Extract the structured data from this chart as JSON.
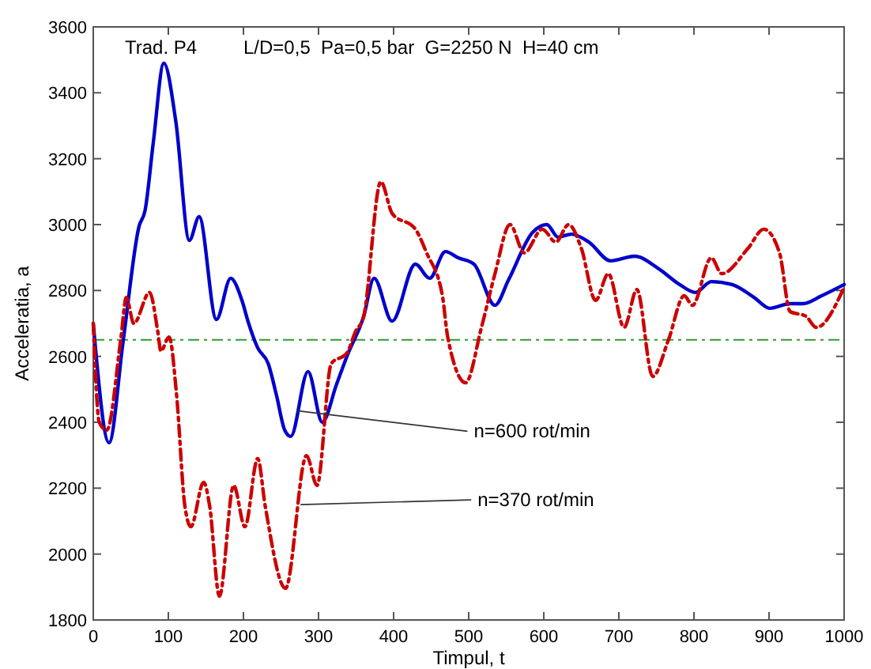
{
  "chart_data": {
    "type": "line",
    "title": "Trad. P4",
    "subtitle": "L/D=0,5  Pa=0,5 bar  G=2250 N  H=40 cm",
    "xlabel": "Timpul, t",
    "ylabel": "Acceleratia, a",
    "xlim": [
      0,
      1000
    ],
    "xticks": [
      0,
      100,
      200,
      300,
      400,
      500,
      600,
      700,
      800,
      900,
      1000
    ],
    "ylim": [
      1800,
      3600
    ],
    "yticks": [
      1800,
      2000,
      2200,
      2400,
      2600,
      2800,
      3000,
      3200,
      3400,
      3600
    ],
    "grid": false,
    "ref_lines": [
      {
        "axis": "y",
        "value": 2650,
        "color": "#339933",
        "line_style": "dashed"
      }
    ],
    "annotations": [
      {
        "text": "n=600 rot/min",
        "x": 271,
        "y": 2435
      },
      {
        "text": "n=370 rot/min",
        "x": 276,
        "y": 2150
      }
    ],
    "series": [
      {
        "color": "#0000cc",
        "line_style": "solid",
        "x": [
          0,
          21,
          40,
          61,
          69,
          80,
          94,
          110,
          128,
          141,
          164,
          183,
          198,
          206,
          219,
          233,
          244,
          255,
          263,
          286,
          305,
          324,
          338,
          360,
          374,
          398,
          429,
          448,
          469,
          486,
          507,
          535,
          553,
          585,
          604,
          619,
          637,
          660,
          689,
          721,
          753,
          781,
          802,
          823,
          851,
          880,
          901,
          928,
          945,
          970,
          1000
        ],
        "values": [
          2700,
          2338,
          2650,
          2995,
          3043,
          3250,
          3490,
          3312,
          2952,
          3024,
          2712,
          2837,
          2770,
          2707,
          2626,
          2578,
          2482,
          2376,
          2357,
          2554,
          2400,
          2515,
          2601,
          2720,
          2837,
          2707,
          2880,
          2837,
          2918,
          2899,
          2880,
          2755,
          2832,
          2976,
          3000,
          2962,
          2971,
          2947,
          2890,
          2904,
          2866,
          2818,
          2794,
          2827,
          2818,
          2779,
          2746,
          2760,
          2760,
          2784,
          2818
        ]
      },
      {
        "color": "#cc0000",
        "line_style": "dashed",
        "x": [
          0,
          8,
          18,
          37,
          44,
          54,
          75,
          86,
          90,
          101,
          111,
          122,
          130,
          147,
          155,
          168,
          187,
          202,
          219,
          229,
          256,
          284,
          298,
          317,
          338,
          349,
          360,
          383,
          398,
          429,
          444,
          465,
          472,
          496,
          517,
          535,
          555,
          574,
          598,
          616,
          633,
          650,
          669,
          686,
          707,
          724,
          745,
          766,
          787,
          798,
          823,
          837,
          872,
          893,
          914,
          928,
          949,
          963,
          1000
        ],
        "values": [
          2700,
          2400,
          2376,
          2659,
          2779,
          2700,
          2794,
          2674,
          2616,
          2659,
          2482,
          2146,
          2083,
          2218,
          2146,
          1872,
          2208,
          2083,
          2290,
          2146,
          1896,
          2299,
          2208,
          2578,
          2611,
          2674,
          2720,
          3130,
          3034,
          2986,
          2914,
          2784,
          2659,
          2520,
          2688,
          2851,
          3000,
          2914,
          2986,
          2947,
          3000,
          2928,
          2770,
          2851,
          2688,
          2803,
          2539,
          2650,
          2784,
          2755,
          2899,
          2851,
          2928,
          2986,
          2914,
          2736,
          2722,
          2688,
          2810
        ]
      }
    ]
  }
}
